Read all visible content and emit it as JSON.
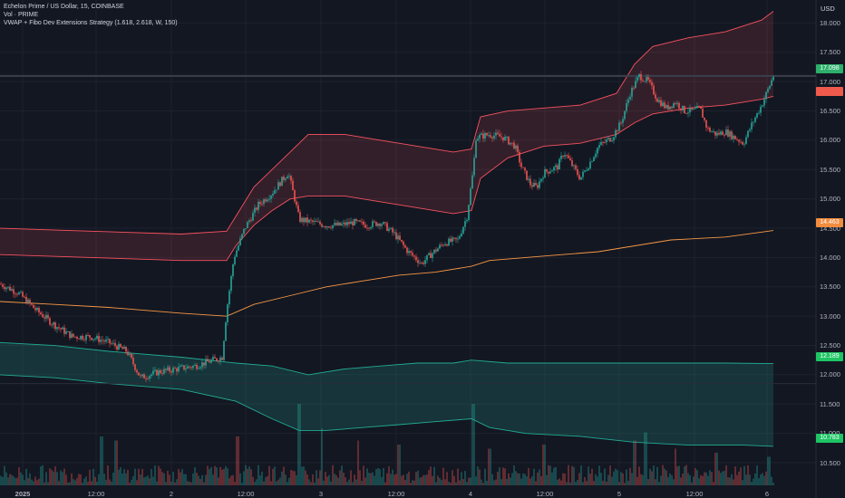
{
  "legend": {
    "title": "Echelon Prime / US Dollar, 15, COINBASE",
    "volume": "Vol · PRIME",
    "indicator": "VWAP + Fibo Dev Extensions Strategy (1.618, 2.618, W, 150)"
  },
  "axis": {
    "currency": "USD",
    "y_ticks": [
      "18.000",
      "17.500",
      "17.000",
      "16.500",
      "16.000",
      "15.500",
      "15.000",
      "14.500",
      "14.000",
      "13.500",
      "13.000",
      "12.500",
      "12.000",
      "11.500",
      "11.000",
      "10.500"
    ],
    "x_ticks": [
      "2025",
      "12:00",
      "2",
      "12:00",
      "3",
      "12:00",
      "4",
      "12:00",
      "5",
      "12:00",
      "6"
    ]
  },
  "price_tags": {
    "last_price": "17.098",
    "upper_value": "",
    "vwap": "14.463",
    "lower_inner": "12.189",
    "lower_outer": "10.783"
  },
  "colors": {
    "background": "#131722",
    "grid": "#1e222d",
    "up": "#26a69a",
    "down": "#ef5350",
    "upper_band": "#f7525f",
    "vwap": "#f89845",
    "lower_band": "#22ab94",
    "last_price_tag": "#2db06b",
    "upper_tag": "#f05a4c",
    "vwap_tag": "#f28c3e",
    "green_tag": "#1ec464"
  },
  "chart_data": {
    "type": "candlestick",
    "symbol": "PRIME/USD",
    "interval": "15",
    "ylim": [
      10.3,
      18.3
    ],
    "x_ticks": [
      "2025",
      "12:00",
      "2",
      "12:00",
      "3",
      "12:00",
      "4",
      "12:00",
      "5",
      "12:00",
      "6"
    ],
    "price_path": [
      [
        0,
        13.55
      ],
      [
        20,
        13.4
      ],
      [
        40,
        13.1
      ],
      [
        60,
        12.85
      ],
      [
        80,
        12.65
      ],
      [
        100,
        12.65
      ],
      [
        120,
        12.55
      ],
      [
        140,
        12.4
      ],
      [
        155,
        11.95
      ],
      [
        175,
        12.05
      ],
      [
        195,
        12.1
      ],
      [
        215,
        12.15
      ],
      [
        235,
        12.25
      ],
      [
        245,
        12.3
      ],
      [
        250,
        13.1
      ],
      [
        258,
        14.0
      ],
      [
        270,
        14.5
      ],
      [
        285,
        14.9
      ],
      [
        300,
        15.1
      ],
      [
        310,
        15.3
      ],
      [
        318,
        15.45
      ],
      [
        325,
        15.0
      ],
      [
        330,
        14.65
      ],
      [
        345,
        14.6
      ],
      [
        360,
        14.55
      ],
      [
        375,
        14.55
      ],
      [
        390,
        14.6
      ],
      [
        405,
        14.55
      ],
      [
        420,
        14.6
      ],
      [
        435,
        14.4
      ],
      [
        450,
        14.1
      ],
      [
        465,
        13.9
      ],
      [
        475,
        14.05
      ],
      [
        490,
        14.25
      ],
      [
        505,
        14.3
      ],
      [
        515,
        14.7
      ],
      [
        522,
        15.5
      ],
      [
        525,
        16.05
      ],
      [
        540,
        16.1
      ],
      [
        555,
        16.05
      ],
      [
        568,
        15.9
      ],
      [
        575,
        15.55
      ],
      [
        585,
        15.25
      ],
      [
        592,
        15.2
      ],
      [
        600,
        15.45
      ],
      [
        615,
        15.55
      ],
      [
        622,
        15.8
      ],
      [
        630,
        15.6
      ],
      [
        640,
        15.35
      ],
      [
        650,
        15.6
      ],
      [
        660,
        15.9
      ],
      [
        675,
        16.05
      ],
      [
        685,
        16.3
      ],
      [
        695,
        16.8
      ],
      [
        705,
        17.1
      ],
      [
        715,
        17.0
      ],
      [
        725,
        16.7
      ],
      [
        735,
        16.55
      ],
      [
        745,
        16.65
      ],
      [
        755,
        16.5
      ],
      [
        765,
        16.5
      ],
      [
        772,
        16.55
      ],
      [
        780,
        16.2
      ],
      [
        790,
        16.1
      ],
      [
        800,
        16.15
      ],
      [
        810,
        16.05
      ],
      [
        820,
        15.95
      ],
      [
        830,
        16.3
      ],
      [
        840,
        16.6
      ],
      [
        848,
        16.9
      ],
      [
        853,
        17.1
      ]
    ],
    "upper_band_outer": [
      [
        0,
        14.5
      ],
      [
        100,
        14.45
      ],
      [
        200,
        14.4
      ],
      [
        250,
        14.45
      ],
      [
        260,
        14.7
      ],
      [
        280,
        15.2
      ],
      [
        300,
        15.5
      ],
      [
        320,
        15.8
      ],
      [
        340,
        16.1
      ],
      [
        380,
        16.1
      ],
      [
        420,
        16.0
      ],
      [
        460,
        15.9
      ],
      [
        500,
        15.8
      ],
      [
        520,
        15.85
      ],
      [
        530,
        16.4
      ],
      [
        560,
        16.5
      ],
      [
        600,
        16.55
      ],
      [
        640,
        16.6
      ],
      [
        680,
        16.8
      ],
      [
        700,
        17.3
      ],
      [
        720,
        17.6
      ],
      [
        760,
        17.75
      ],
      [
        800,
        17.85
      ],
      [
        840,
        18.05
      ],
      [
        853,
        18.2
      ]
    ],
    "upper_band_inner": [
      [
        0,
        14.05
      ],
      [
        100,
        14.0
      ],
      [
        200,
        13.95
      ],
      [
        250,
        13.95
      ],
      [
        260,
        14.2
      ],
      [
        280,
        14.55
      ],
      [
        300,
        14.8
      ],
      [
        320,
        15.0
      ],
      [
        340,
        15.05
      ],
      [
        380,
        15.05
      ],
      [
        420,
        14.95
      ],
      [
        460,
        14.85
      ],
      [
        500,
        14.75
      ],
      [
        520,
        14.8
      ],
      [
        530,
        15.35
      ],
      [
        560,
        15.7
      ],
      [
        600,
        15.9
      ],
      [
        640,
        15.95
      ],
      [
        680,
        16.1
      ],
      [
        700,
        16.3
      ],
      [
        720,
        16.45
      ],
      [
        760,
        16.55
      ],
      [
        800,
        16.6
      ],
      [
        840,
        16.7
      ],
      [
        853,
        16.75
      ]
    ],
    "vwap": [
      [
        0,
        13.25
      ],
      [
        60,
        13.2
      ],
      [
        120,
        13.15
      ],
      [
        200,
        13.05
      ],
      [
        250,
        13.0
      ],
      [
        280,
        13.2
      ],
      [
        320,
        13.35
      ],
      [
        360,
        13.5
      ],
      [
        400,
        13.6
      ],
      [
        440,
        13.7
      ],
      [
        480,
        13.75
      ],
      [
        520,
        13.85
      ],
      [
        540,
        13.95
      ],
      [
        580,
        14.0
      ],
      [
        620,
        14.05
      ],
      [
        660,
        14.1
      ],
      [
        700,
        14.2
      ],
      [
        740,
        14.3
      ],
      [
        800,
        14.35
      ],
      [
        853,
        14.46
      ]
    ],
    "lower_band_inner": [
      [
        0,
        12.55
      ],
      [
        60,
        12.5
      ],
      [
        120,
        12.4
      ],
      [
        200,
        12.3
      ],
      [
        260,
        12.2
      ],
      [
        300,
        12.15
      ],
      [
        340,
        12.0
      ],
      [
        380,
        12.1
      ],
      [
        420,
        12.15
      ],
      [
        460,
        12.2
      ],
      [
        500,
        12.2
      ],
      [
        520,
        12.25
      ],
      [
        560,
        12.2
      ],
      [
        600,
        12.2
      ],
      [
        660,
        12.2
      ],
      [
        720,
        12.2
      ],
      [
        800,
        12.2
      ],
      [
        853,
        12.19
      ]
    ],
    "lower_band_outer": [
      [
        0,
        12.0
      ],
      [
        60,
        11.95
      ],
      [
        120,
        11.85
      ],
      [
        200,
        11.75
      ],
      [
        260,
        11.55
      ],
      [
        300,
        11.25
      ],
      [
        330,
        11.05
      ],
      [
        360,
        11.05
      ],
      [
        400,
        11.1
      ],
      [
        440,
        11.15
      ],
      [
        480,
        11.2
      ],
      [
        520,
        11.25
      ],
      [
        540,
        11.1
      ],
      [
        580,
        11.0
      ],
      [
        640,
        10.95
      ],
      [
        700,
        10.85
      ],
      [
        760,
        10.8
      ],
      [
        820,
        10.8
      ],
      [
        853,
        10.78
      ]
    ],
    "volume_spikes": [
      [
        112,
        0.6
      ],
      [
        128,
        0.55
      ],
      [
        262,
        0.6
      ],
      [
        330,
        1.0
      ],
      [
        355,
        0.7
      ],
      [
        395,
        0.55
      ],
      [
        440,
        0.5
      ],
      [
        522,
        1.0
      ],
      [
        540,
        0.45
      ],
      [
        600,
        0.5
      ],
      [
        700,
        0.55
      ],
      [
        712,
        0.65
      ],
      [
        745,
        0.45
      ],
      [
        790,
        0.4
      ],
      [
        848,
        0.35
      ]
    ]
  }
}
